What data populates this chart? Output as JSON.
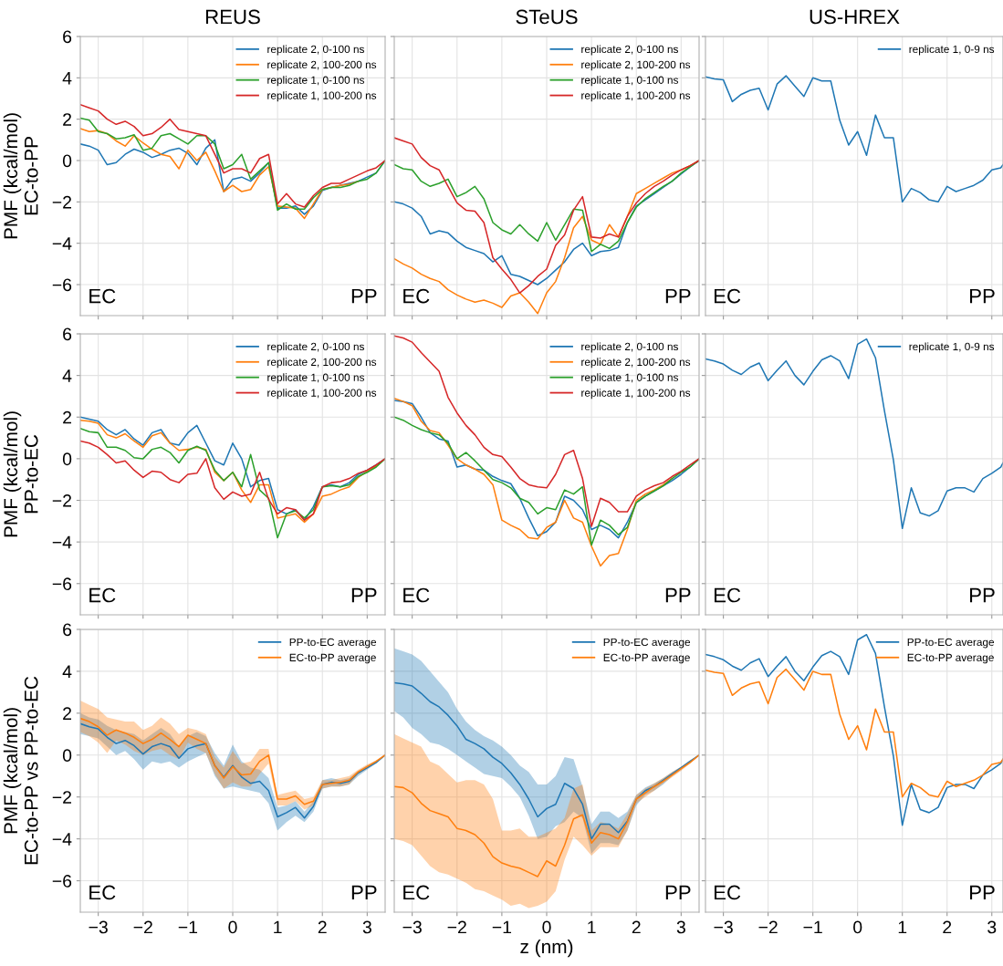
{
  "chart_data": [
    {
      "type": "line",
      "title": "REUS",
      "ylabel": "PMF (kcal/mol)\nEC-to-PP",
      "x": [
        -3.4,
        -3.2,
        -3.0,
        -2.8,
        -2.6,
        -2.4,
        -2.2,
        -2.0,
        -1.8,
        -1.6,
        -1.4,
        -1.2,
        -1.0,
        -0.8,
        -0.6,
        -0.4,
        -0.2,
        0,
        0.2,
        0.4,
        0.6,
        0.8,
        1.0,
        1.2,
        1.4,
        1.6,
        1.8,
        2.0,
        2.2,
        2.4,
        2.6,
        2.8,
        3.0,
        3.2,
        3.4
      ],
      "xlim": [
        -3.4,
        3.4
      ],
      "ylim": [
        -7.5,
        6
      ],
      "xticks": [
        {
          "value": -3,
          "label": null
        },
        {
          "value": -2,
          "label": null
        },
        {
          "value": -1,
          "label": null
        },
        {
          "value": 0,
          "label": null
        },
        {
          "value": 1,
          "label": null
        },
        {
          "value": 2,
          "label": null
        },
        {
          "value": 3,
          "label": null
        }
      ],
      "yticks": [
        {
          "value": -6,
          "label": "−6"
        },
        {
          "value": -4,
          "label": "−4"
        },
        {
          "value": -2,
          "label": "−2"
        },
        0,
        2,
        4,
        6
      ],
      "tick_labels": "y",
      "grid": true,
      "legend": "top right",
      "annotations": [
        "EC",
        "PP"
      ],
      "series": [
        {
          "name": "replicate 2, 0-100 ns",
          "color": "#1f77b4",
          "values": [
            0.8,
            0.7,
            0.5,
            -0.2,
            -0.1,
            0.3,
            0.55,
            0.4,
            0.15,
            0.3,
            0.5,
            0.6,
            0.35,
            -0.2,
            0.6,
            1.0,
            -1.5,
            -0.9,
            -0.8,
            -1.0,
            -0.6,
            -0.1,
            -2.3,
            -2.3,
            -2.2,
            -2.6,
            -2.2,
            -1.45,
            -1.3,
            -1.2,
            -1.1,
            -1.0,
            -0.8,
            -0.6,
            0.0
          ]
        },
        {
          "name": "replicate 2, 100-200 ns",
          "color": "#ff7f0e",
          "values": [
            1.55,
            1.4,
            1.45,
            1.3,
            0.95,
            0.7,
            1.2,
            0.85,
            0.55,
            0.3,
            0.2,
            -0.4,
            0.5,
            0.0,
            0.4,
            -0.5,
            -1.5,
            -1.2,
            -1.5,
            -1.4,
            -0.7,
            -0.3,
            -2.2,
            -2.25,
            -2.3,
            -2.8,
            -2.1,
            -1.4,
            -1.3,
            -1.2,
            -1.15,
            -1.0,
            null,
            null,
            null
          ]
        },
        {
          "name": "replicate 1, 0-100 ns",
          "color": "#2ca02c",
          "values": [
            2.05,
            1.95,
            1.4,
            1.3,
            1.05,
            1.1,
            1.25,
            0.5,
            0.6,
            1.2,
            1.3,
            1.05,
            0.8,
            1.2,
            1.2,
            0.8,
            -0.4,
            -0.2,
            0.3,
            -0.9,
            -0.5,
            -0.1,
            -2.4,
            -2.1,
            -2.35,
            -2.35,
            -1.8,
            -1.4,
            -1.3,
            -1.3,
            -1.2,
            -1.0,
            -0.9,
            -0.6,
            0.0
          ]
        },
        {
          "name": "replicate 1, 100-200 ns",
          "color": "#d62728",
          "values": [
            2.7,
            2.55,
            2.4,
            2.0,
            1.75,
            1.9,
            1.65,
            1.2,
            1.3,
            1.6,
            2.0,
            1.5,
            1.4,
            1.3,
            1.2,
            0.3,
            -0.6,
            -0.4,
            -0.4,
            -0.6,
            0.1,
            0.3,
            -2.1,
            -1.6,
            -2.1,
            -2.25,
            -1.7,
            -1.3,
            -1.1,
            -1.1,
            -0.9,
            -0.7,
            -0.5,
            -0.35,
            0.0
          ]
        }
      ]
    },
    {
      "type": "line",
      "title": "STeUS",
      "x": [
        -3.4,
        -3.2,
        -3.0,
        -2.8,
        -2.6,
        -2.4,
        -2.2,
        -2.0,
        -1.8,
        -1.6,
        -1.4,
        -1.2,
        -1.0,
        -0.8,
        -0.6,
        -0.4,
        -0.2,
        0,
        0.2,
        0.4,
        0.6,
        0.8,
        1.0,
        1.2,
        1.4,
        1.6,
        1.8,
        2.0,
        2.2,
        2.4,
        2.6,
        2.8,
        3.0,
        3.2,
        3.4
      ],
      "xlim": [
        -3.4,
        3.4
      ],
      "ylim": [
        -7.5,
        6
      ],
      "xticks": [
        {
          "value": -3,
          "label": null
        },
        {
          "value": -2,
          "label": null
        },
        {
          "value": -1,
          "label": null
        },
        {
          "value": 0,
          "label": null
        },
        {
          "value": 1,
          "label": null
        },
        {
          "value": 2,
          "label": null
        },
        {
          "value": 3,
          "label": null
        }
      ],
      "yticks": [
        {
          "value": -6,
          "label": null
        },
        {
          "value": -4,
          "label": null
        },
        {
          "value": -2,
          "label": null
        },
        {
          "value": 0,
          "label": null
        },
        {
          "value": 2,
          "label": null
        },
        {
          "value": 4,
          "label": null
        },
        {
          "value": 6,
          "label": null
        }
      ],
      "tick_labels": false,
      "grid": true,
      "legend": "top right",
      "annotations": [
        "EC",
        "PP"
      ],
      "series": [
        {
          "name": "replicate 2, 0-100 ns",
          "color": "#1f77b4",
          "values": [
            -2.0,
            -2.1,
            -2.3,
            -2.7,
            -3.55,
            -3.4,
            -3.5,
            -3.9,
            -4.2,
            -4.35,
            -4.5,
            -4.9,
            -4.6,
            -5.5,
            -5.6,
            -5.8,
            -6.0,
            -5.7,
            -5.3,
            -4.9,
            -4.3,
            -4.0,
            -4.6,
            -4.4,
            -4.35,
            -4.2,
            -3.0,
            -2.2,
            -1.9,
            -1.6,
            -1.3,
            -1.0,
            -0.65,
            -0.3,
            0.0
          ]
        },
        {
          "name": "replicate 2, 100-200 ns",
          "color": "#ff7f0e",
          "values": [
            -4.75,
            -5.0,
            -5.2,
            -5.5,
            -5.7,
            -5.85,
            -6.25,
            -6.5,
            -6.7,
            -6.85,
            -6.75,
            -6.9,
            -7.1,
            -6.55,
            -6.4,
            -6.85,
            -7.4,
            -6.4,
            -5.85,
            -4.7,
            -3.25,
            -2.7,
            -3.85,
            -4.05,
            -3.1,
            -3.7,
            -2.7,
            -1.6,
            -1.35,
            -1.1,
            -0.85,
            -0.6,
            -0.45,
            -0.25,
            0.0
          ]
        },
        {
          "name": "replicate 1, 0-100 ns",
          "color": "#2ca02c",
          "values": [
            -0.2,
            -0.4,
            -0.45,
            -1.0,
            -1.25,
            -1.1,
            -0.9,
            -1.75,
            -1.55,
            -1.25,
            -1.85,
            -3.0,
            -3.35,
            -3.55,
            -3.1,
            -3.55,
            -3.9,
            -3.0,
            -3.85,
            -3.1,
            -2.35,
            -2.4,
            -4.4,
            -4.05,
            -4.25,
            -3.9,
            -3.0,
            -2.25,
            -1.85,
            -1.55,
            -1.25,
            -1.0,
            -0.6,
            -0.3,
            0.0
          ]
        },
        {
          "name": "replicate 1, 100-200 ns",
          "color": "#d62728",
          "values": [
            1.1,
            0.95,
            0.8,
            0.15,
            -0.25,
            -0.45,
            -1.25,
            -2.05,
            -2.4,
            -2.45,
            -3.0,
            -4.7,
            -5.25,
            -5.75,
            -6.4,
            -6.05,
            -5.6,
            -5.25,
            -4.1,
            -3.6,
            -2.4,
            -1.75,
            -3.7,
            -3.75,
            -3.55,
            -3.7,
            -2.7,
            -2.05,
            -1.6,
            -1.25,
            -1.0,
            -0.7,
            -0.45,
            -0.25,
            0.0
          ]
        }
      ]
    },
    {
      "type": "line",
      "title": "US-HREX",
      "x": [
        -3.4,
        -3.2,
        -3.0,
        -2.8,
        -2.6,
        -2.4,
        -2.2,
        -2.0,
        -1.8,
        -1.6,
        -1.4,
        -1.2,
        -1.0,
        -0.8,
        -0.6,
        -0.4,
        -0.2,
        0,
        0.2,
        0.4,
        0.6,
        0.8,
        1.0,
        1.2,
        1.4,
        1.6,
        1.8,
        2.0,
        2.2,
        2.4,
        2.6,
        2.8,
        3.0,
        3.2,
        3.25
      ],
      "xlim": [
        -3.4,
        3.25
      ],
      "ylim": [
        -7.5,
        6
      ],
      "xticks": [
        {
          "value": -3,
          "label": null
        },
        {
          "value": -2,
          "label": null
        },
        {
          "value": -1,
          "label": null
        },
        {
          "value": 0,
          "label": null
        },
        {
          "value": 1,
          "label": null
        },
        {
          "value": 2,
          "label": null
        },
        {
          "value": 3,
          "label": null
        }
      ],
      "yticks": [
        {
          "value": -6,
          "label": null
        },
        {
          "value": -4,
          "label": null
        },
        {
          "value": -2,
          "label": null
        },
        {
          "value": 0,
          "label": null
        },
        {
          "value": 2,
          "label": null
        },
        {
          "value": 4,
          "label": null
        },
        {
          "value": 6,
          "label": null
        }
      ],
      "tick_labels": false,
      "grid": true,
      "legend": "top right",
      "annotations": [
        "EC",
        "PP"
      ],
      "series": [
        {
          "name": "replicate 1, 0-9 ns",
          "color": "#1f77b4",
          "values": [
            4.05,
            3.95,
            3.9,
            2.85,
            3.2,
            3.4,
            3.5,
            2.45,
            3.7,
            4.1,
            3.6,
            3.1,
            4.0,
            3.85,
            3.85,
            1.95,
            0.75,
            1.4,
            0.25,
            2.2,
            1.1,
            1.1,
            -2.0,
            -1.35,
            -1.55,
            -1.9,
            -2.0,
            -1.25,
            -1.5,
            -1.35,
            -1.2,
            -0.95,
            -0.45,
            -0.35,
            -0.2
          ]
        }
      ]
    },
    {
      "type": "line",
      "ylabel": "PMF (kcal/mol)\nPP-to-EC",
      "x": [
        -3.4,
        -3.2,
        -3.0,
        -2.8,
        -2.6,
        -2.4,
        -2.2,
        -2.0,
        -1.8,
        -1.6,
        -1.4,
        -1.2,
        -1.0,
        -0.8,
        -0.6,
        -0.4,
        -0.2,
        0,
        0.2,
        0.4,
        0.6,
        0.8,
        1.0,
        1.2,
        1.4,
        1.6,
        1.8,
        2.0,
        2.2,
        2.4,
        2.6,
        2.8,
        3.0,
        3.2,
        3.4
      ],
      "xlim": [
        -3.4,
        3.4
      ],
      "ylim": [
        -7.5,
        6
      ],
      "xticks": [
        {
          "value": -3,
          "label": null
        },
        {
          "value": -2,
          "label": null
        },
        {
          "value": -1,
          "label": null
        },
        {
          "value": 0,
          "label": null
        },
        {
          "value": 1,
          "label": null
        },
        {
          "value": 2,
          "label": null
        },
        {
          "value": 3,
          "label": null
        }
      ],
      "yticks": [
        {
          "value": -6,
          "label": "−6"
        },
        {
          "value": -4,
          "label": "−4"
        },
        {
          "value": -2,
          "label": "−2"
        },
        0,
        2,
        4,
        6
      ],
      "tick_labels": "y",
      "grid": true,
      "legend": "top right",
      "annotations": [
        "EC",
        "PP"
      ],
      "series": [
        {
          "name": "replicate 2, 0-100 ns",
          "color": "#1f77b4",
          "values": [
            2.0,
            1.9,
            1.8,
            1.4,
            1.15,
            1.4,
            0.95,
            0.65,
            1.25,
            1.4,
            0.75,
            0.65,
            1.25,
            1.6,
            0.75,
            -0.1,
            -0.3,
            0.75,
            0.0,
            -1.35,
            -1.05,
            -0.95,
            -2.45,
            -2.65,
            -2.45,
            -2.95,
            -2.3,
            -1.35,
            -1.25,
            -1.35,
            -1.15,
            -0.75,
            -0.55,
            -0.3,
            0.0
          ]
        },
        {
          "name": "replicate 2, 100-200 ns",
          "color": "#ff7f0e",
          "values": [
            1.85,
            1.8,
            1.7,
            1.15,
            1.0,
            1.2,
            0.85,
            0.55,
            1.1,
            1.25,
            0.75,
            0.4,
            0.45,
            0.55,
            0.45,
            -0.65,
            -1.05,
            -0.65,
            -1.5,
            -2.1,
            -1.25,
            -1.25,
            -2.85,
            -2.75,
            -2.65,
            -3.05,
            -2.65,
            -1.8,
            -1.7,
            -1.5,
            -1.35,
            -0.9,
            -0.6,
            -0.35,
            0.0
          ]
        },
        {
          "name": "replicate 1, 0-100 ns",
          "color": "#2ca02c",
          "values": [
            1.45,
            1.3,
            1.25,
            0.55,
            0.55,
            0.4,
            0.05,
            0.0,
            0.45,
            0.55,
            0.3,
            -0.2,
            0.4,
            0.6,
            0.4,
            -0.55,
            -1.05,
            -0.65,
            -1.35,
            0.2,
            -1.5,
            -1.9,
            -3.8,
            -2.65,
            -2.5,
            -2.85,
            -2.45,
            -1.35,
            -1.3,
            -1.35,
            -1.25,
            -0.85,
            -0.65,
            -0.4,
            0.0
          ]
        },
        {
          "name": "replicate 1, 100-200 ns",
          "color": "#d62728",
          "values": [
            0.85,
            0.75,
            0.55,
            0.2,
            -0.2,
            -0.1,
            -0.55,
            -0.9,
            -0.6,
            -0.65,
            -1.0,
            -1.15,
            -0.75,
            -0.7,
            0.0,
            -1.4,
            -1.95,
            -1.6,
            -1.8,
            -1.7,
            -0.65,
            -1.95,
            -2.65,
            -2.35,
            -2.45,
            -2.95,
            -2.65,
            -1.35,
            -1.15,
            -1.1,
            -0.95,
            -0.7,
            -0.55,
            -0.3,
            0.0
          ]
        }
      ]
    },
    {
      "type": "line",
      "x": [
        -3.4,
        -3.2,
        -3.0,
        -2.8,
        -2.6,
        -2.4,
        -2.2,
        -2.0,
        -1.8,
        -1.6,
        -1.4,
        -1.2,
        -1.0,
        -0.8,
        -0.6,
        -0.4,
        -0.2,
        0,
        0.2,
        0.4,
        0.6,
        0.8,
        1.0,
        1.2,
        1.4,
        1.6,
        1.8,
        2.0,
        2.2,
        2.4,
        2.6,
        2.8,
        3.0,
        3.2,
        3.4
      ],
      "xlim": [
        -3.4,
        3.4
      ],
      "ylim": [
        -7.5,
        6
      ],
      "xticks": [
        {
          "value": -3,
          "label": null
        },
        {
          "value": -2,
          "label": null
        },
        {
          "value": -1,
          "label": null
        },
        {
          "value": 0,
          "label": null
        },
        {
          "value": 1,
          "label": null
        },
        {
          "value": 2,
          "label": null
        },
        {
          "value": 3,
          "label": null
        }
      ],
      "yticks": [
        {
          "value": -6,
          "label": null
        },
        {
          "value": -4,
          "label": null
        },
        {
          "value": -2,
          "label": null
        },
        {
          "value": 0,
          "label": null
        },
        {
          "value": 2,
          "label": null
        },
        {
          "value": 4,
          "label": null
        },
        {
          "value": 6,
          "label": null
        }
      ],
      "tick_labels": false,
      "grid": true,
      "legend": "top right",
      "annotations": [
        "EC",
        "PP"
      ],
      "series": [
        {
          "name": "replicate 2, 0-100 ns",
          "color": "#1f77b4",
          "values": [
            2.8,
            2.75,
            2.65,
            2.0,
            1.25,
            0.95,
            0.85,
            -0.4,
            -0.3,
            -0.5,
            -0.55,
            -0.85,
            -1.05,
            -1.2,
            -1.9,
            -2.85,
            -3.7,
            -3.5,
            -3.05,
            -1.8,
            -2.0,
            -2.45,
            -3.4,
            -3.2,
            -3.4,
            -3.8,
            -3.05,
            -2.1,
            -1.8,
            -1.55,
            -1.3,
            -1.05,
            -0.75,
            -0.4,
            0.0
          ]
        },
        {
          "name": "replicate 2, 100-200 ns",
          "color": "#ff7f0e",
          "values": [
            2.9,
            2.75,
            2.55,
            1.8,
            1.35,
            1.25,
            0.65,
            0.0,
            -0.3,
            -0.5,
            -0.75,
            -1.25,
            -2.95,
            -3.2,
            -3.4,
            -3.8,
            -3.85,
            -3.3,
            -3.05,
            -2.0,
            -2.85,
            -3.05,
            -4.2,
            -5.15,
            -4.65,
            -4.55,
            -3.4,
            -2.0,
            -1.7,
            -1.5,
            -1.25,
            -0.95,
            null,
            null,
            null
          ]
        },
        {
          "name": "replicate 1, 0-100 ns",
          "color": "#2ca02c",
          "values": [
            2.0,
            1.85,
            1.6,
            1.4,
            1.25,
            1.15,
            0.75,
            0.0,
            0.3,
            -0.1,
            -0.55,
            -1.0,
            -1.15,
            -1.4,
            -1.9,
            -2.1,
            -2.65,
            -2.35,
            -2.45,
            -1.5,
            -1.7,
            -1.35,
            -4.15,
            -2.95,
            -3.2,
            -3.65,
            -3.3,
            -2.1,
            -1.8,
            -1.55,
            -1.3,
            -0.95,
            -0.65,
            -0.4,
            0.0
          ]
        },
        {
          "name": "replicate 1, 100-200 ns",
          "color": "#d62728",
          "values": [
            5.9,
            5.8,
            5.6,
            5.1,
            4.65,
            4.2,
            2.95,
            2.2,
            1.6,
            1.15,
            0.55,
            0.2,
            0.1,
            -0.4,
            -0.95,
            -1.25,
            -1.35,
            -1.4,
            -0.75,
            0.2,
            0.4,
            -0.95,
            -3.25,
            -1.9,
            -2.1,
            -2.55,
            -2.55,
            -1.8,
            -1.5,
            -1.3,
            -1.15,
            -0.85,
            -0.6,
            -0.3,
            0.0
          ]
        }
      ]
    },
    {
      "type": "line",
      "x": [
        -3.4,
        -3.2,
        -3.0,
        -2.8,
        -2.6,
        -2.4,
        -2.2,
        -2.0,
        -1.8,
        -1.6,
        -1.4,
        -1.2,
        -1.0,
        -0.8,
        -0.6,
        -0.4,
        -0.2,
        0,
        0.2,
        0.4,
        0.6,
        0.8,
        1.0,
        1.2,
        1.4,
        1.6,
        1.8,
        2.0,
        2.2,
        2.4,
        2.6,
        2.8,
        3.0,
        3.2,
        3.25
      ],
      "xlim": [
        -3.4,
        3.25
      ],
      "ylim": [
        -7.5,
        6
      ],
      "xticks": [
        {
          "value": -3,
          "label": null
        },
        {
          "value": -2,
          "label": null
        },
        {
          "value": -1,
          "label": null
        },
        {
          "value": 0,
          "label": null
        },
        {
          "value": 1,
          "label": null
        },
        {
          "value": 2,
          "label": null
        },
        {
          "value": 3,
          "label": null
        }
      ],
      "yticks": [
        {
          "value": -6,
          "label": null
        },
        {
          "value": -4,
          "label": null
        },
        {
          "value": -2,
          "label": null
        },
        {
          "value": 0,
          "label": null
        },
        {
          "value": 2,
          "label": null
        },
        {
          "value": 4,
          "label": null
        },
        {
          "value": 6,
          "label": null
        }
      ],
      "tick_labels": false,
      "grid": true,
      "legend": "top right",
      "annotations": [
        "EC",
        "PP"
      ],
      "series": [
        {
          "name": "replicate 1, 0-9 ns",
          "color": "#1f77b4",
          "values": [
            4.8,
            4.7,
            4.55,
            4.25,
            4.05,
            4.4,
            4.6,
            3.75,
            4.25,
            4.7,
            4.0,
            3.55,
            4.2,
            4.75,
            4.95,
            4.7,
            3.85,
            5.5,
            5.75,
            4.85,
            2.3,
            -0.05,
            -3.35,
            -1.4,
            -2.6,
            -2.75,
            -2.5,
            -1.55,
            -1.4,
            -1.4,
            -1.6,
            -0.95,
            -0.7,
            -0.4,
            -0.2
          ]
        }
      ]
    },
    {
      "type": "line",
      "ylabel": "PMF (kcal/mol)\nEC-to-PP vs PP-to-EC",
      "x": [
        -3.4,
        -3.2,
        -3.0,
        -2.8,
        -2.6,
        -2.4,
        -2.2,
        -2.0,
        -1.8,
        -1.6,
        -1.4,
        -1.2,
        -1.0,
        -0.8,
        -0.6,
        -0.4,
        -0.2,
        0,
        0.2,
        0.4,
        0.6,
        0.8,
        1.0,
        1.2,
        1.4,
        1.6,
        1.8,
        2.0,
        2.2,
        2.4,
        2.6,
        2.8,
        3.0,
        3.2,
        3.4
      ],
      "xlim": [
        -3.4,
        3.4
      ],
      "ylim": [
        -7.5,
        6
      ],
      "xticks": [
        {
          "value": -3,
          "label": "−3"
        },
        {
          "value": -2,
          "label": "−2"
        },
        {
          "value": -1,
          "label": "−1"
        },
        0,
        1,
        2,
        3
      ],
      "yticks": [
        {
          "value": -6,
          "label": "−6"
        },
        {
          "value": -4,
          "label": "−4"
        },
        {
          "value": -2,
          "label": "−2"
        },
        0,
        2,
        4,
        6
      ],
      "grid": true,
      "legend": "top right",
      "annotations": [
        "EC",
        "PP"
      ],
      "series": [
        {
          "name": "PP-to-EC average",
          "color": "#1f77b4",
          "values": [
            1.5,
            1.35,
            1.25,
            0.85,
            0.55,
            0.7,
            0.45,
            0.05,
            0.4,
            0.55,
            0.4,
            -0.15,
            0.3,
            0.45,
            0.55,
            -0.5,
            -1.05,
            -0.5,
            -1.05,
            -1.35,
            -1.25,
            -1.7,
            -2.95,
            -2.75,
            -2.5,
            -3.0,
            -2.45,
            -1.4,
            -1.3,
            -1.35,
            -1.25,
            -0.85,
            -0.6,
            -0.35,
            0.0
          ],
          "lower": [
            1.0,
            0.9,
            0.8,
            0.4,
            0.0,
            0.2,
            -0.2,
            -0.7,
            -0.3,
            -0.4,
            -0.3,
            -0.6,
            -0.3,
            -0.1,
            0.1,
            -1.0,
            -1.6,
            -1.5,
            -1.6,
            -1.7,
            -1.8,
            -2.3,
            -3.6,
            -3.2,
            -2.9,
            -3.2,
            -2.7,
            -1.6,
            -1.5,
            -1.5,
            -1.4,
            -1.0,
            -0.7,
            -0.4,
            0.0
          ],
          "upper": [
            2.0,
            1.8,
            1.7,
            1.4,
            1.2,
            1.1,
            1.0,
            0.7,
            1.0,
            1.3,
            1.0,
            0.4,
            0.9,
            1.1,
            0.9,
            0.1,
            -0.5,
            0.5,
            -0.3,
            -0.6,
            -0.7,
            -1.1,
            -2.5,
            -2.4,
            -2.2,
            -2.7,
            -2.2,
            -1.2,
            -1.1,
            -1.2,
            -1.1,
            -0.75,
            -0.5,
            -0.3,
            0.0
          ]
        },
        {
          "name": "EC-to-PP average",
          "color": "#ff7f0e",
          "values": [
            1.75,
            1.6,
            1.35,
            0.95,
            1.2,
            1.05,
            0.85,
            0.55,
            0.75,
            1.05,
            0.75,
            0.4,
            0.95,
            0.75,
            0.55,
            -0.5,
            -1.1,
            -0.55,
            -0.95,
            -0.9,
            -0.3,
            0.0,
            -2.1,
            -2.1,
            -1.95,
            -2.35,
            -2.2,
            -1.4,
            -1.35,
            -1.3,
            -1.2,
            -0.8,
            -0.55,
            -0.3,
            0.0
          ],
          "lower": [
            1.1,
            0.9,
            0.6,
            0.1,
            0.7,
            0.5,
            0.2,
            0.0,
            0.2,
            0.3,
            0.0,
            -0.2,
            0.6,
            0.3,
            0.1,
            -0.9,
            -1.6,
            -1.3,
            -1.5,
            -1.5,
            -0.9,
            -0.4,
            -2.4,
            -2.4,
            -2.2,
            -2.6,
            -2.4,
            -1.6,
            -1.5,
            -1.5,
            -1.4,
            -0.9,
            -0.65,
            -0.35,
            0.0
          ],
          "upper": [
            2.6,
            2.4,
            2.2,
            1.8,
            1.7,
            1.6,
            1.6,
            1.2,
            1.4,
            1.8,
            1.5,
            1.0,
            1.3,
            1.2,
            1.0,
            -0.1,
            -0.6,
            0.2,
            -0.4,
            -0.3,
            0.3,
            0.3,
            -1.9,
            -1.8,
            -1.7,
            -2.1,
            -2.0,
            -1.2,
            -1.2,
            -1.1,
            -1.0,
            -0.7,
            -0.45,
            -0.25,
            0.0
          ]
        }
      ]
    },
    {
      "type": "line",
      "xlabel": "z (nm)",
      "x": [
        -3.4,
        -3.2,
        -3.0,
        -2.8,
        -2.6,
        -2.4,
        -2.2,
        -2.0,
        -1.8,
        -1.6,
        -1.4,
        -1.2,
        -1.0,
        -0.8,
        -0.6,
        -0.4,
        -0.2,
        0,
        0.2,
        0.4,
        0.6,
        0.8,
        1.0,
        1.2,
        1.4,
        1.6,
        1.8,
        2.0,
        2.2,
        2.4,
        2.6,
        2.8,
        3.0,
        3.2,
        3.4
      ],
      "xlim": [
        -3.4,
        3.4
      ],
      "ylim": [
        -7.5,
        6
      ],
      "xticks": [
        {
          "value": -3,
          "label": "−3"
        },
        {
          "value": -2,
          "label": "−2"
        },
        {
          "value": -1,
          "label": "−1"
        },
        0,
        1,
        2,
        3
      ],
      "yticks": [
        {
          "value": -6,
          "label": null
        },
        {
          "value": -4,
          "label": null
        },
        {
          "value": -2,
          "label": null
        },
        {
          "value": 0,
          "label": null
        },
        {
          "value": 2,
          "label": null
        },
        {
          "value": 4,
          "label": null
        },
        {
          "value": 6,
          "label": null
        }
      ],
      "tick_labels": "x",
      "grid": true,
      "legend": "top right",
      "annotations": [
        "EC",
        "PP"
      ],
      "series": [
        {
          "name": "PP-to-EC average",
          "color": "#1f77b4",
          "values": [
            3.45,
            3.4,
            3.3,
            2.95,
            2.55,
            2.3,
            1.9,
            1.4,
            0.75,
            0.55,
            0.3,
            -0.1,
            -0.4,
            -0.85,
            -1.4,
            -2.1,
            -2.95,
            -2.55,
            -2.35,
            -1.35,
            -1.6,
            -2.35,
            -4.0,
            -3.3,
            -3.3,
            -3.7,
            -3.15,
            -2.1,
            -1.7,
            -1.5,
            -1.2,
            -0.9,
            -0.6,
            -0.3,
            0.0
          ],
          "lower": [
            2.1,
            1.8,
            1.3,
            1.0,
            0.6,
            0.5,
            0.3,
            0.0,
            -0.3,
            -0.6,
            -0.9,
            -1.0,
            -1.1,
            -1.5,
            -2.0,
            -2.9,
            -4.0,
            -3.9,
            -3.4,
            -3.2,
            -2.7,
            -3.0,
            -4.7,
            -4.2,
            -4.2,
            -4.3,
            -3.6,
            -2.4,
            -1.9,
            -1.7,
            -1.4,
            -1.0,
            -0.7,
            -0.35,
            0.0
          ],
          "upper": [
            5.1,
            4.95,
            4.8,
            4.5,
            4.0,
            3.5,
            3.0,
            2.2,
            1.6,
            1.2,
            0.9,
            0.7,
            0.4,
            0.0,
            -0.5,
            -0.8,
            -1.4,
            -1.4,
            -1.0,
            -0.1,
            -0.2,
            -1.5,
            -3.3,
            -2.7,
            -2.7,
            -3.0,
            -2.7,
            -1.9,
            -1.55,
            -1.35,
            -1.1,
            -0.8,
            -0.55,
            -0.25,
            0.0
          ]
        },
        {
          "name": "EC-to-PP average",
          "color": "#ff7f0e",
          "values": [
            -1.5,
            -1.55,
            -1.8,
            -2.3,
            -2.65,
            -2.8,
            -2.95,
            -3.5,
            -3.6,
            -3.8,
            -4.2,
            -4.85,
            -5.15,
            -5.3,
            -5.4,
            -5.6,
            -5.8,
            -5.05,
            -5.3,
            -4.3,
            -3.05,
            -2.85,
            -4.2,
            -3.7,
            -3.8,
            -4.0,
            -3.2,
            -2.1,
            -1.8,
            -1.5,
            -1.25,
            -0.95,
            -0.65,
            -0.35,
            0.0
          ],
          "lower": [
            -4.0,
            -4.1,
            -4.3,
            -4.8,
            -5.3,
            -5.6,
            -5.7,
            -5.9,
            -6.1,
            -6.4,
            -6.5,
            -6.7,
            -6.9,
            -7.2,
            -7.1,
            -7.3,
            -7.2,
            -7.0,
            -6.5,
            -5.0,
            -3.9,
            -4.3,
            -4.8,
            -4.4,
            -4.4,
            -4.4,
            -3.6,
            -2.3,
            -2.0,
            -1.7,
            -1.35,
            -1.05,
            -0.75,
            -0.4,
            0.0
          ],
          "upper": [
            1.0,
            0.8,
            0.6,
            0.4,
            -0.3,
            -0.5,
            -0.9,
            -1.3,
            -1.2,
            -1.2,
            -1.4,
            -2.1,
            -3.6,
            -3.6,
            -3.5,
            -3.9,
            -3.9,
            -3.7,
            -3.5,
            -3.0,
            -1.6,
            -1.4,
            -3.6,
            -3.2,
            -3.3,
            -3.5,
            -2.8,
            -1.9,
            -1.6,
            -1.35,
            -1.1,
            -0.8,
            -0.55,
            -0.25,
            0.0
          ]
        }
      ]
    },
    {
      "type": "line",
      "x": [
        -3.4,
        -3.2,
        -3.0,
        -2.8,
        -2.6,
        -2.4,
        -2.2,
        -2.0,
        -1.8,
        -1.6,
        -1.4,
        -1.2,
        -1.0,
        -0.8,
        -0.6,
        -0.4,
        -0.2,
        0,
        0.2,
        0.4,
        0.6,
        0.8,
        1.0,
        1.2,
        1.4,
        1.6,
        1.8,
        2.0,
        2.2,
        2.4,
        2.6,
        2.8,
        3.0,
        3.2,
        3.25
      ],
      "xlim": [
        -3.4,
        3.25
      ],
      "ylim": [
        -7.5,
        6
      ],
      "xticks": [
        {
          "value": -3,
          "label": "−3"
        },
        {
          "value": -2,
          "label": "−2"
        },
        {
          "value": -1,
          "label": "−1"
        },
        0,
        1,
        2,
        3
      ],
      "yticks": [
        {
          "value": -6,
          "label": null
        },
        {
          "value": -4,
          "label": null
        },
        {
          "value": -2,
          "label": null
        },
        {
          "value": 0,
          "label": null
        },
        {
          "value": 2,
          "label": null
        },
        {
          "value": 4,
          "label": null
        },
        {
          "value": 6,
          "label": null
        }
      ],
      "tick_labels": "x",
      "grid": true,
      "legend": "top right",
      "annotations": [
        "EC",
        "PP"
      ],
      "series": [
        {
          "name": "PP-to-EC average",
          "color": "#1f77b4",
          "values": [
            4.8,
            4.7,
            4.55,
            4.25,
            4.05,
            4.4,
            4.6,
            3.75,
            4.25,
            4.7,
            4.0,
            3.55,
            4.2,
            4.75,
            4.95,
            4.7,
            3.85,
            5.5,
            5.75,
            4.85,
            2.3,
            -0.05,
            -3.35,
            -1.4,
            -2.6,
            -2.75,
            -2.5,
            -1.55,
            -1.4,
            -1.4,
            -1.6,
            -0.95,
            -0.7,
            -0.4,
            -0.2
          ]
        },
        {
          "name": "EC-to-PP average",
          "color": "#ff7f0e",
          "values": [
            4.05,
            3.95,
            3.9,
            2.85,
            3.2,
            3.4,
            3.5,
            2.45,
            3.7,
            4.1,
            3.6,
            3.1,
            4.0,
            3.85,
            3.85,
            1.95,
            0.75,
            1.4,
            0.25,
            2.2,
            1.1,
            1.1,
            -2.0,
            -1.35,
            -1.55,
            -1.9,
            -2.0,
            -1.25,
            -1.5,
            -1.35,
            -1.2,
            -0.95,
            -0.45,
            -0.35,
            -0.2
          ]
        }
      ]
    }
  ]
}
